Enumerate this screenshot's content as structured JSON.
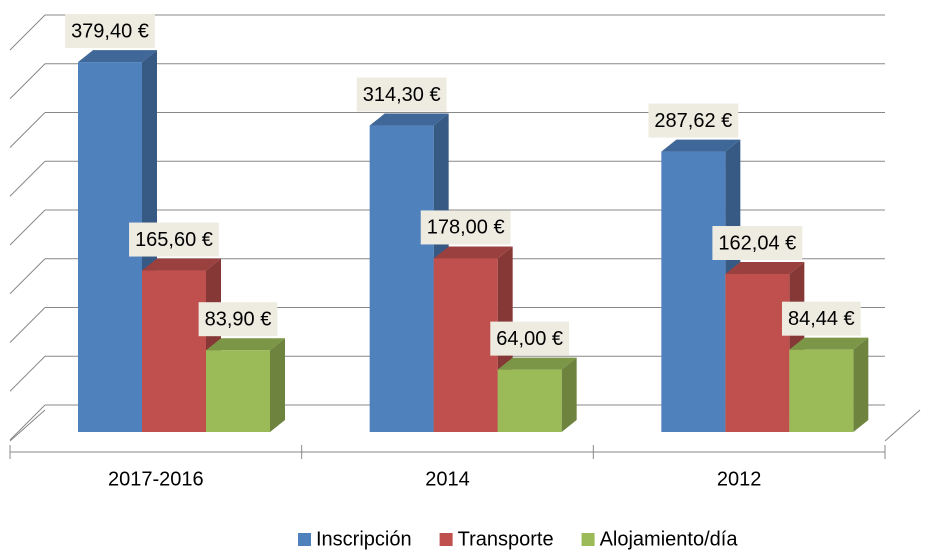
{
  "chart_data": {
    "type": "bar3d",
    "categories": [
      "2017-2016",
      "2014",
      "2012"
    ],
    "series": [
      {
        "name": "Inscripción",
        "color": "#4f81bd",
        "values": [
          379.4,
          314.3,
          287.62
        ],
        "value_labels": [
          "379,40 €",
          "314,30 €",
          "287,62 €"
        ]
      },
      {
        "name": "Transporte",
        "color": "#c0504d",
        "values": [
          165.6,
          178.0,
          162.04
        ],
        "value_labels": [
          "165,60 €",
          "178,00 €",
          "162,04 €"
        ]
      },
      {
        "name": "Alojamiento/día",
        "color": "#9bbb59",
        "values": [
          83.9,
          64.0,
          84.44
        ],
        "value_labels": [
          "83,90 €",
          "64,00 €",
          "84,44 €"
        ]
      }
    ],
    "ylim": [
      0,
      400
    ],
    "yticks": [
      0,
      50,
      100,
      150,
      200,
      250,
      300,
      350,
      400
    ],
    "grid": true,
    "legend": "bottom"
  }
}
